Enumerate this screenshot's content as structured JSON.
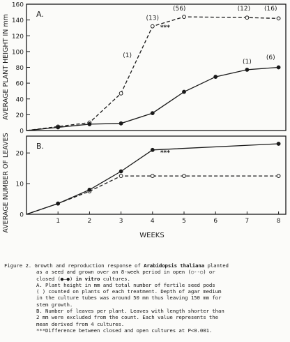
{
  "chart_data": [
    {
      "type": "line",
      "panel_label": "A.",
      "ylabel": "AVERAGE PLANT HEIGHT IN mm",
      "yticks": [
        0,
        20,
        40,
        60,
        80,
        100,
        120,
        140,
        160
      ],
      "ylim": [
        0,
        160
      ],
      "xlim": [
        0,
        8
      ],
      "grid": false,
      "series": [
        {
          "style": "dashed-open-circle",
          "x": [
            1,
            2,
            3,
            4,
            5,
            7,
            8
          ],
          "y": [
            5,
            10,
            47,
            132,
            144,
            143,
            142
          ]
        },
        {
          "style": "solid-closed-circle",
          "x": [
            1,
            2,
            3,
            4,
            5,
            6,
            7,
            8
          ],
          "y": [
            4,
            8,
            9,
            22,
            49,
            68,
            77,
            80
          ]
        }
      ],
      "annotations": [
        {
          "text": "(1)",
          "x": 3.2,
          "y": 93
        },
        {
          "text": "(13)",
          "x": 4.0,
          "y": 140
        },
        {
          "text": "***",
          "x": 4.4,
          "y": 128
        },
        {
          "text": "(56)",
          "x": 4.85,
          "y": 152
        },
        {
          "text": "(12)",
          "x": 6.9,
          "y": 152
        },
        {
          "text": "(16)",
          "x": 7.75,
          "y": 152
        },
        {
          "text": "(1)",
          "x": 7.0,
          "y": 85
        },
        {
          "text": "(6)",
          "x": 7.75,
          "y": 90
        }
      ]
    },
    {
      "type": "line",
      "panel_label": "B.",
      "ylabel": "AVERAGE NUMBER OF LEAVES",
      "xlabel": "WEEKS",
      "xticks": [
        1,
        2,
        3,
        4,
        5,
        6,
        7,
        8
      ],
      "yticks": [
        0,
        10,
        20
      ],
      "ylim": [
        0,
        25.5
      ],
      "xlim": [
        0,
        8
      ],
      "grid": false,
      "series": [
        {
          "style": "dashed-open-circle",
          "x": [
            1,
            2,
            3,
            4,
            5,
            8
          ],
          "y": [
            3.5,
            7.5,
            12.5,
            12.5,
            12.5,
            12.5
          ]
        },
        {
          "style": "solid-closed-circle",
          "x": [
            1,
            2,
            3,
            4,
            8
          ],
          "y": [
            3.5,
            8,
            14,
            21,
            23
          ]
        }
      ],
      "annotations": [
        {
          "text": "***",
          "x": 4.4,
          "y": 19.5
        }
      ]
    }
  ],
  "caption": {
    "lines": [
      {
        "segments": [
          {
            "t": "Figure 2. Growth and reproduction response of "
          },
          {
            "t": "Arabidopsis thaliana",
            "b": true
          },
          {
            "t": " planted"
          }
        ]
      },
      {
        "indent": true,
        "segments": [
          {
            "t": "as a seed and grown over an 8-week period in open (○--○) or"
          }
        ]
      },
      {
        "indent": true,
        "segments": [
          {
            "t": "closed (●—●) "
          },
          {
            "t": "in vitro",
            "b": true
          },
          {
            "t": " cultures."
          }
        ]
      },
      {
        "indent": true,
        "segments": [
          {
            "t": "A.  Plant height in mm and total number of fertile seed pods"
          }
        ]
      },
      {
        "indent": true,
        "segments": [
          {
            "t": "(  ) counted on plants of each treatment. Depth of agar medium"
          }
        ]
      },
      {
        "indent": true,
        "segments": [
          {
            "t": "in the culture tubes was around 50 mm thus leaving 150 mm for"
          }
        ]
      },
      {
        "indent": true,
        "segments": [
          {
            "t": "stem growth."
          }
        ]
      },
      {
        "indent": true,
        "segments": [
          {
            "t": "B. Number of leaves per plant. Leaves with length shorter than"
          }
        ]
      },
      {
        "indent": true,
        "segments": [
          {
            "t": "2 mm were excluded from the count. Each value represents the"
          }
        ]
      },
      {
        "indent": true,
        "segments": [
          {
            "t": "mean derived from 4 cultures."
          }
        ]
      },
      {
        "indent": true,
        "segments": [
          {
            "t": "***Difference between closed and open cultures at P<0.001."
          }
        ]
      }
    ]
  }
}
